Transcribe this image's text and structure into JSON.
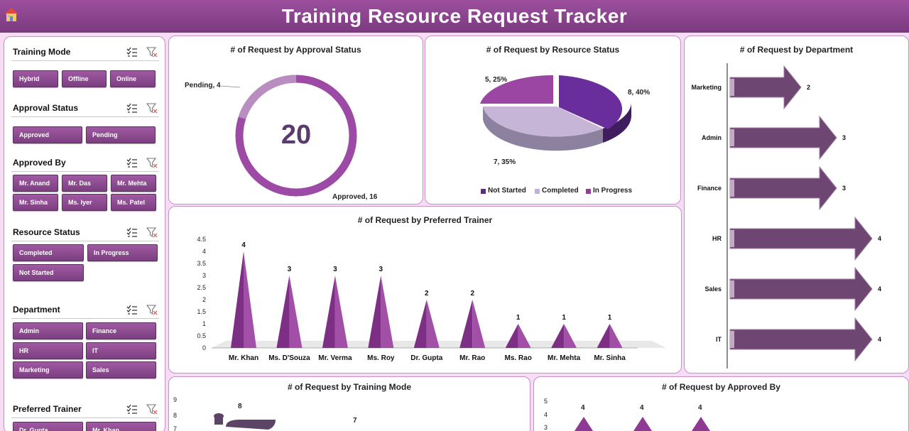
{
  "header": {
    "title": "Training Resource Request Tracker",
    "home_icon": "home-icon"
  },
  "colors": {
    "accent": "#8e4492",
    "header": "#874589",
    "background": "#f6ddf5",
    "dark_purple": "#5f2c82",
    "light_lilac": "#c3b0d8",
    "magenta": "#963a9a"
  },
  "slicers": {
    "training_mode": {
      "label": "Training Mode",
      "items": [
        "Hybrid",
        "Offline",
        "Online"
      ]
    },
    "approval_status": {
      "label": "Approval Status",
      "items": [
        "Approved",
        "Pending"
      ]
    },
    "approved_by": {
      "label": "Approved By",
      "items": [
        "Mr. Anand",
        "Mr. Das",
        "Mr. Mehta",
        "Mr. Sinha",
        "Ms. Iyer",
        "Ms. Patel"
      ]
    },
    "resource_status": {
      "label": "Resource Status",
      "items": [
        "Completed",
        "In Progress",
        "Not Started"
      ]
    },
    "department": {
      "label": "Department",
      "items": [
        "Admin",
        "Finance",
        "HR",
        "IT",
        "Marketing",
        "Sales"
      ]
    },
    "preferred_trainer": {
      "label": "Preferred Trainer",
      "items": [
        "Dr. Gupta",
        "Mr. Khan"
      ]
    }
  },
  "chart_data": [
    {
      "id": "approval_status",
      "type": "pie",
      "title": "# of Request by Approval Status",
      "center_value": "20",
      "categories": [
        "Approved",
        "Pending"
      ],
      "values": [
        16,
        4
      ],
      "data_labels": [
        "Approved, 16",
        "Pending, 4"
      ]
    },
    {
      "id": "resource_status",
      "type": "pie",
      "title": "# of Request by Resource Status",
      "categories": [
        "Not Started",
        "Completed",
        "In Progress"
      ],
      "values": [
        8,
        7,
        5
      ],
      "data_labels": [
        "8, 40%",
        "7, 35%",
        "5, 25%"
      ],
      "legend": "bottom"
    },
    {
      "id": "preferred_trainer",
      "type": "bar",
      "title": "# of Request by Preferred Trainer",
      "categories": [
        "Mr. Khan",
        "Ms. D'Souza",
        "Mr. Verma",
        "Ms. Roy",
        "Dr. Gupta",
        "Mr. Rao",
        "Ms. Rao",
        "Mr. Mehta",
        "Mr. Sinha"
      ],
      "values": [
        4,
        3,
        3,
        3,
        2,
        2,
        1,
        1,
        1
      ],
      "yticks": [
        "0",
        "0.5",
        "1",
        "1.5",
        "2",
        "2.5",
        "3",
        "3.5",
        "4",
        "4.5"
      ],
      "ylim": [
        0,
        4.5
      ]
    },
    {
      "id": "department",
      "type": "bar",
      "title": "# of Request by Department",
      "categories": [
        "Marketing",
        "Admin",
        "Finance",
        "HR",
        "Sales",
        "IT"
      ],
      "values": [
        2,
        3,
        3,
        4,
        4,
        4
      ]
    },
    {
      "id": "training_mode",
      "type": "bar",
      "title": "# of Request by Training Mode",
      "visible_values": [
        8,
        7
      ],
      "yticks": [
        "7",
        "8",
        "9"
      ]
    },
    {
      "id": "approved_by",
      "type": "bar",
      "title": "# of Request by Approved By",
      "visible_values": [
        4,
        4,
        4
      ],
      "yticks": [
        "3",
        "4",
        "5"
      ]
    }
  ]
}
